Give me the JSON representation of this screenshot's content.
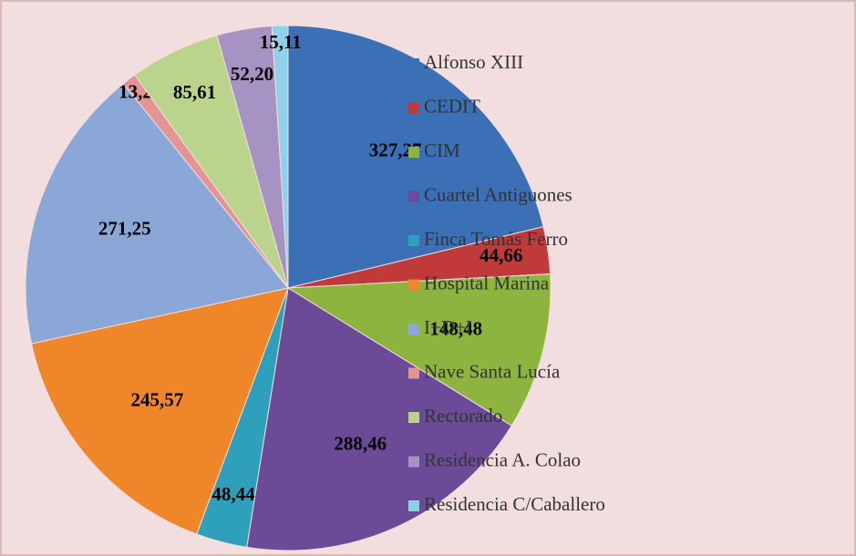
{
  "chart_data": {
    "type": "pie",
    "categories": [
      "Alfonso XIII",
      "CEDIT",
      "CIM",
      "Cuartel Antiguones",
      "Finca Tomás Ferro",
      "Hospital Marina",
      "I+D+I",
      "Nave Santa Lucía",
      "Rectorado",
      "Residencia A. Colao",
      "Residencia C/Caballero"
    ],
    "values": [
      327.27,
      44.66,
      148.48,
      288.46,
      48.44,
      245.57,
      271.25,
      13.23,
      85.61,
      52.2,
      15.11
    ],
    "value_labels": [
      "327,27",
      "44,66",
      "148,48",
      "288,46",
      "48,44",
      "245,57",
      "271,25",
      "13,23",
      "85,61",
      "52,20",
      "15,11"
    ],
    "colors": [
      "#3b6fb6",
      "#c0393b",
      "#8db43e",
      "#6b4a98",
      "#2fa0bb",
      "#f0862a",
      "#8ba7d7",
      "#e39493",
      "#bad58b",
      "#a693c3",
      "#90d1e7"
    ],
    "legend": "right"
  }
}
